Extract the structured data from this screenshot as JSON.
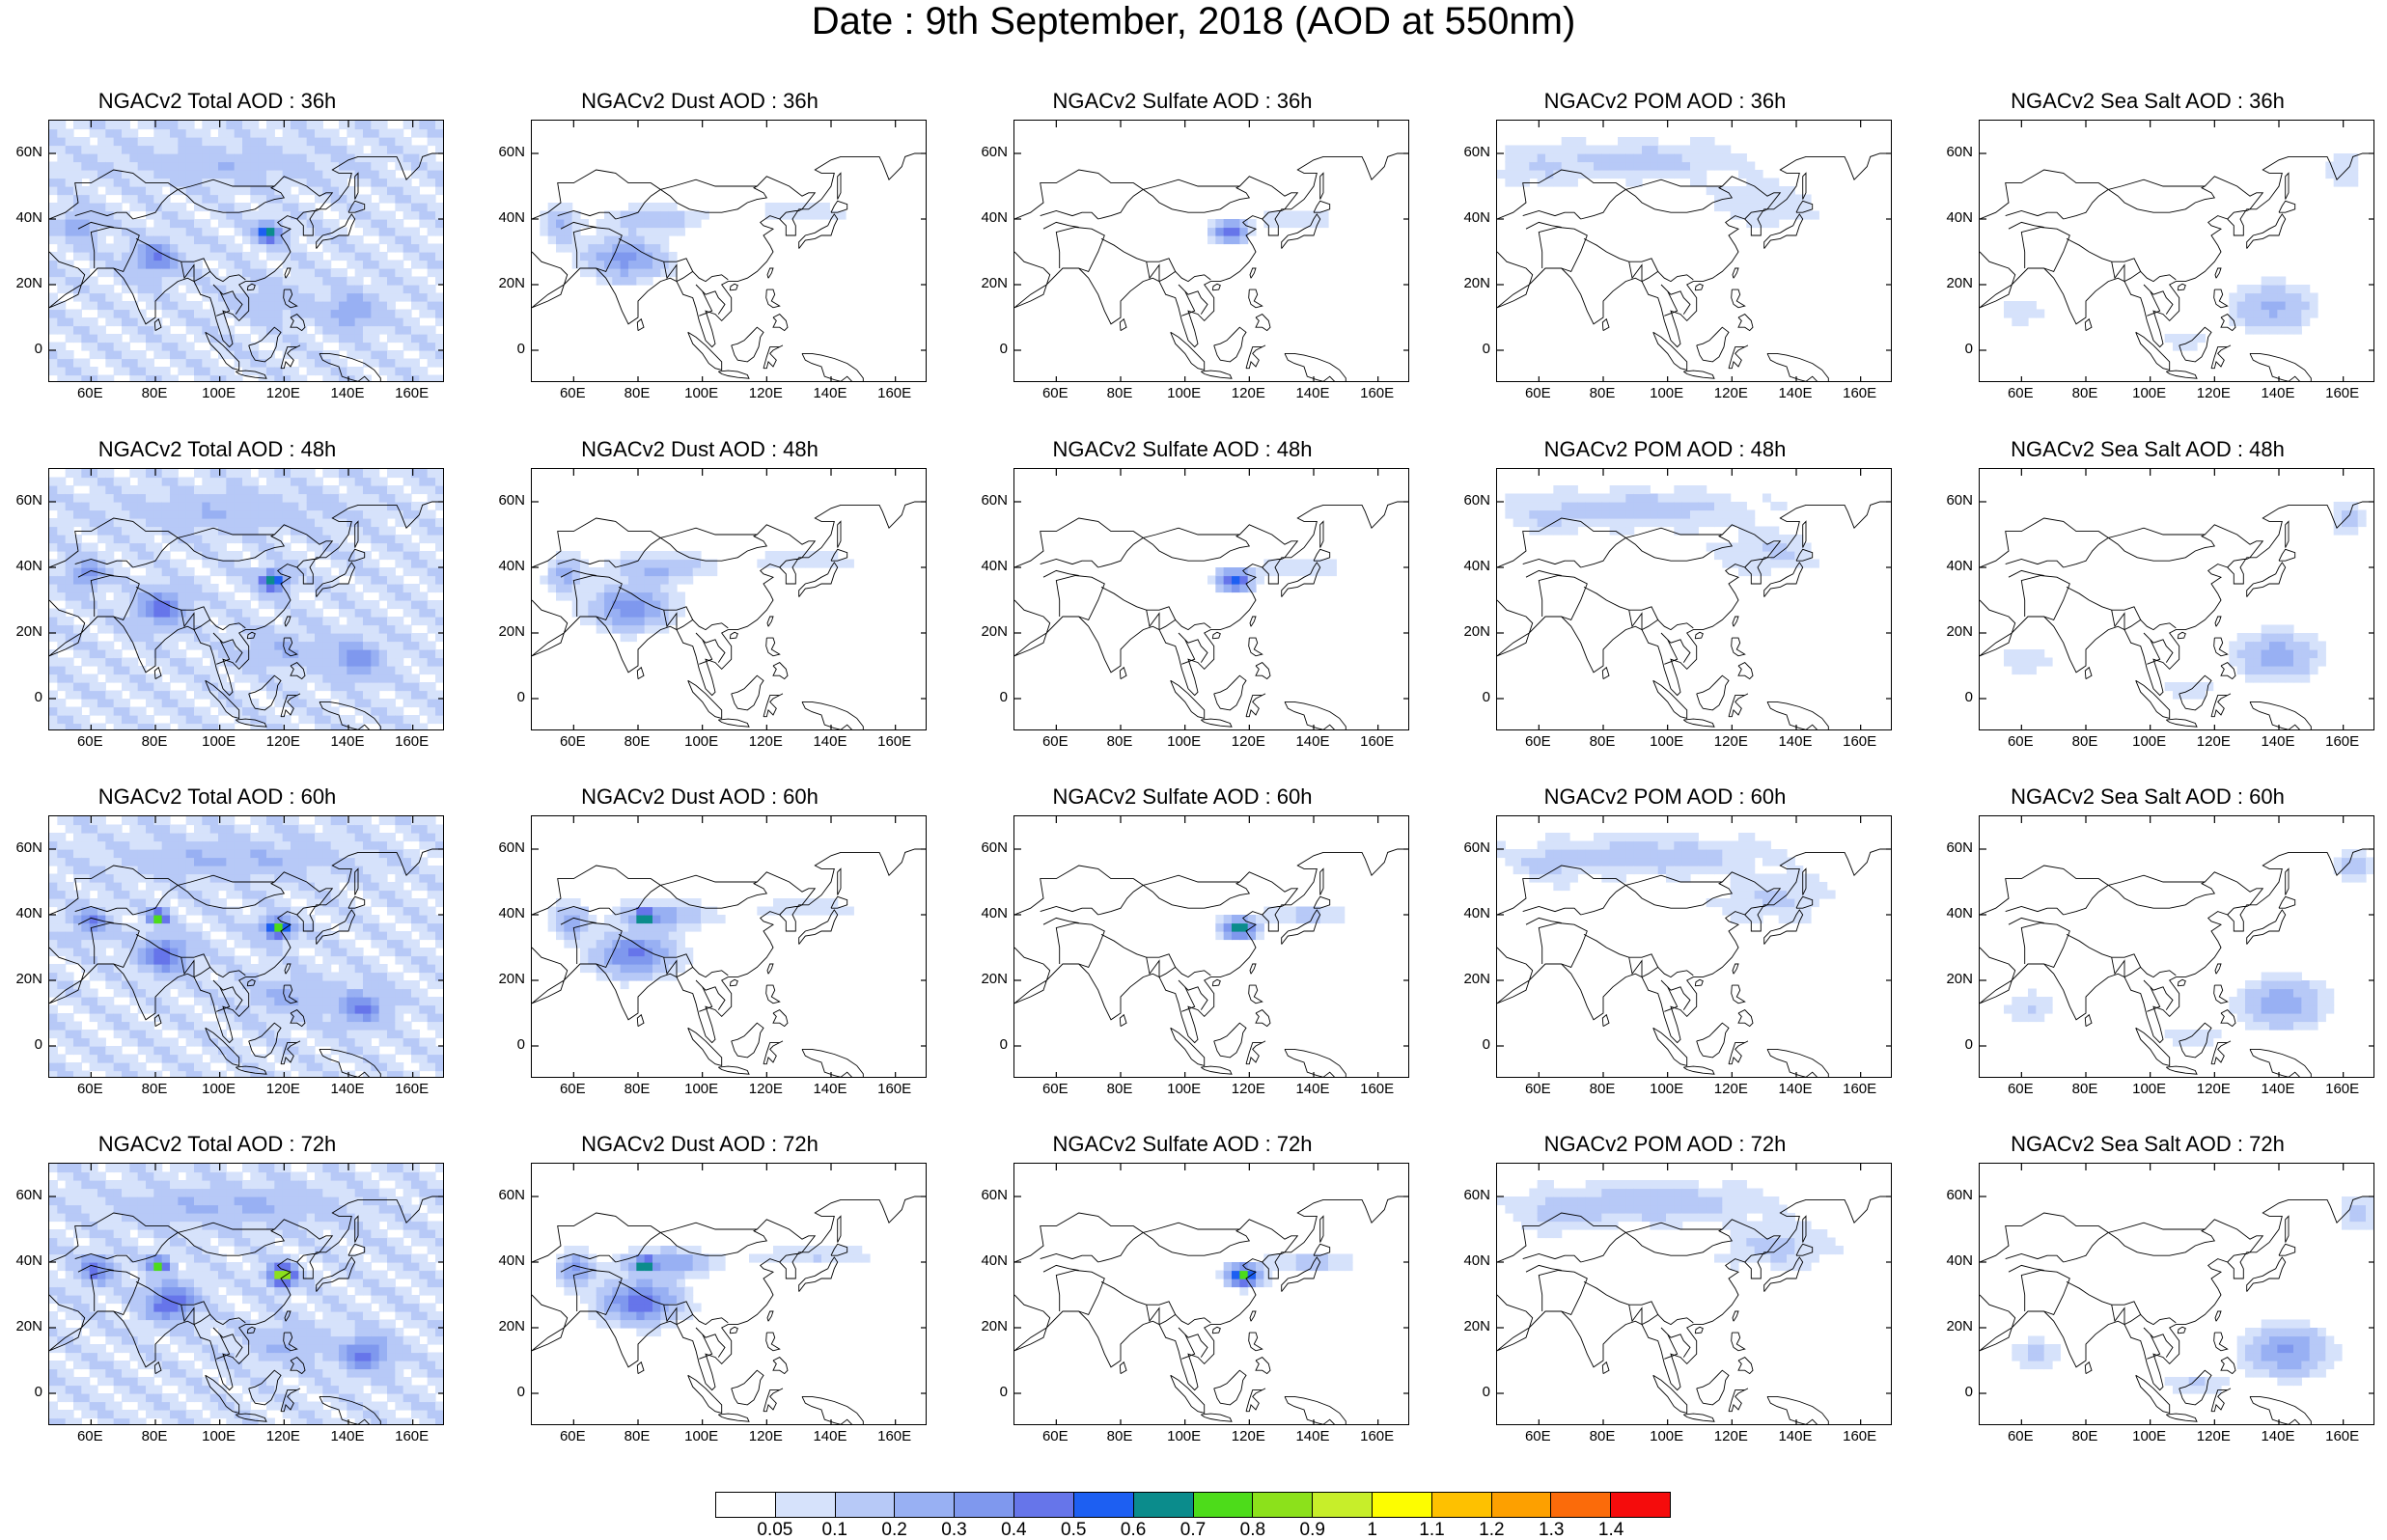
{
  "title": "Date : 9th September, 2018 (AOD at 550nm)",
  "panels": [
    {
      "title": "NGACv2 Total AOD : 36h",
      "species": "total",
      "hour": 36
    },
    {
      "title": "NGACv2 Dust AOD : 36h",
      "species": "dust",
      "hour": 36
    },
    {
      "title": "NGACv2 Sulfate AOD : 36h",
      "species": "sulfate",
      "hour": 36
    },
    {
      "title": "NGACv2 POM AOD : 36h",
      "species": "pom",
      "hour": 36
    },
    {
      "title": "NGACv2 Sea Salt AOD : 36h",
      "species": "seasalt",
      "hour": 36
    },
    {
      "title": "NGACv2 Total AOD : 48h",
      "species": "total",
      "hour": 48
    },
    {
      "title": "NGACv2 Dust AOD : 48h",
      "species": "dust",
      "hour": 48
    },
    {
      "title": "NGACv2 Sulfate AOD : 48h",
      "species": "sulfate",
      "hour": 48
    },
    {
      "title": "NGACv2 POM AOD : 48h",
      "species": "pom",
      "hour": 48
    },
    {
      "title": "NGACv2 Sea Salt AOD : 48h",
      "species": "seasalt",
      "hour": 48
    },
    {
      "title": "NGACv2 Total AOD : 60h",
      "species": "total",
      "hour": 60
    },
    {
      "title": "NGACv2 Dust AOD : 60h",
      "species": "dust",
      "hour": 60
    },
    {
      "title": "NGACv2 Sulfate AOD : 60h",
      "species": "sulfate",
      "hour": 60
    },
    {
      "title": "NGACv2 POM AOD : 60h",
      "species": "pom",
      "hour": 60
    },
    {
      "title": "NGACv2 Sea Salt AOD : 60h",
      "species": "seasalt",
      "hour": 60
    },
    {
      "title": "NGACv2 Total AOD : 72h",
      "species": "total",
      "hour": 72
    },
    {
      "title": "NGACv2 Dust AOD : 72h",
      "species": "dust",
      "hour": 72
    },
    {
      "title": "NGACv2 Sulfate AOD : 72h",
      "species": "sulfate",
      "hour": 72
    },
    {
      "title": "NGACv2 POM AOD : 72h",
      "species": "pom",
      "hour": 72
    },
    {
      "title": "NGACv2 Sea Salt  AOD : 72h",
      "species": "seasalt",
      "hour": 72
    }
  ],
  "axes": {
    "lon_range": [
      47,
      170
    ],
    "lat_range": [
      -10,
      70
    ],
    "xticks": [
      "60E",
      "80E",
      "100E",
      "120E",
      "140E",
      "160E"
    ],
    "xtick_values": [
      60,
      80,
      100,
      120,
      140,
      160
    ],
    "yticks": [
      "60N",
      "40N",
      "20N",
      "0"
    ],
    "ytick_values": [
      60,
      40,
      20,
      0
    ]
  },
  "colorbar": {
    "labels": [
      "0.05",
      "0.1",
      "0.2",
      "0.3",
      "0.4",
      "0.5",
      "0.6",
      "0.7",
      "0.8",
      "0.9",
      "1",
      "1.1",
      "1.2",
      "1.3",
      "1.4"
    ],
    "colors": [
      "#ffffff",
      "#d6e2fb",
      "#b7c9f7",
      "#98b0f3",
      "#7f98ee",
      "#6675ea",
      "#1d5ff2",
      "#0b8c8c",
      "#4ddc1a",
      "#8ce11b",
      "#c7ee2a",
      "#fdfd00",
      "#fec100",
      "#fda000",
      "#fb6b0a",
      "#f50c0c"
    ]
  },
  "coastline_color": "#000000"
}
